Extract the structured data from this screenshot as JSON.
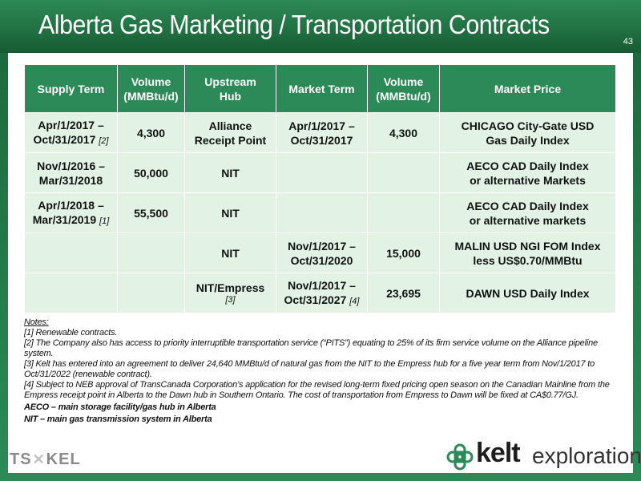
{
  "header": {
    "title": "Alberta Gas Marketing / Transportation Contracts",
    "slide_number": "43"
  },
  "table": {
    "columns": [
      "Supply Term",
      "Volume\n(MMBtu/d)",
      "Upstream\nHub",
      "Market Term",
      "Volume\n(MMBtu/d)",
      "Market Price"
    ],
    "rows": [
      {
        "supply_term": "Apr/1/2017 –\nOct/31/2017",
        "supply_ref": "[2]",
        "supply_volume": "4,300",
        "upstream_hub": "Alliance\nReceipt Point",
        "hub_ref": "",
        "market_term": "Apr/1/2017 –\nOct/31/2017",
        "market_ref": "",
        "market_volume": "4,300",
        "market_price": "CHICAGO City-Gate USD\nGas Daily Index"
      },
      {
        "supply_term": "Nov/1/2016 –\nMar/31/2018",
        "supply_ref": "",
        "supply_volume": "50,000",
        "upstream_hub": "NIT",
        "hub_ref": "",
        "market_term": "",
        "market_ref": "",
        "market_volume": "",
        "market_price": "AECO CAD Daily Index\nor alternative Markets"
      },
      {
        "supply_term": "Apr/1/2018 –\nMar/31/2019",
        "supply_ref": "[1]",
        "supply_volume": "55,500",
        "upstream_hub": "NIT",
        "hub_ref": "",
        "market_term": "",
        "market_ref": "",
        "market_volume": "",
        "market_price": "AECO CAD Daily Index\nor alternative markets"
      },
      {
        "supply_term": "",
        "supply_ref": "",
        "supply_volume": "",
        "upstream_hub": "NIT",
        "hub_ref": "",
        "market_term": "Nov/1/2017 –\nOct/31/2020",
        "market_ref": "",
        "market_volume": "15,000",
        "market_price": "MALIN USD NGI FOM Index\nless US$0.70/MMBtu"
      },
      {
        "supply_term": "",
        "supply_ref": "",
        "supply_volume": "",
        "upstream_hub": "NIT/Empress",
        "hub_ref": "[3]",
        "market_term": "Nov/1/2017 –\nOct/31/2027",
        "market_ref": "[4]",
        "market_volume": "23,695",
        "market_price": "DAWN USD Daily Index"
      }
    ]
  },
  "notes": {
    "heading": "Notes:",
    "items": [
      "[1] Renewable contracts.",
      "[2] The Company also has access to priority interruptible transportation service (“PITS”) equating to 25% of its firm service volume on the Alliance pipeline system.",
      "[3] Kelt has entered into an agreement to deliver 24,640 MMBtu/d of natural gas from the NIT to the Empress hub for a five year term from Nov/1/2017 to Oct/31/2022 (renewable contract).",
      "[4] Subject to NEB approval of TransCanada Corporation’s application for the revised long-term fixed pricing open season on the Canadian Mainline from the Empress receipt point in Alberta to the Dawn hub in Southern Ontario. The cost of transportation from Empress to Dawn will be fixed at CA$0.77/GJ."
    ],
    "definitions": [
      "AECO – main storage facility/gas hub in Alberta",
      "NIT – main gas transmission system in Alberta"
    ]
  },
  "footer": {
    "ticker_prefix": "TS",
    "ticker_suffix": "KEL",
    "logo_word1": "kelt",
    "logo_word2": "exploration"
  },
  "colors": {
    "brand_green": "#2c8a58",
    "row_fill": "#e2f3e6"
  }
}
